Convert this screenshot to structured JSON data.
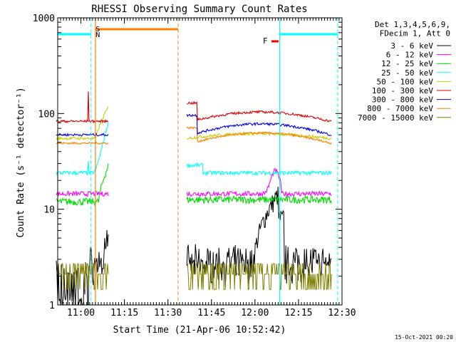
{
  "chart_data": {
    "type": "line",
    "title": "RHESSI Observing Summary Count Rates",
    "xlabel": "Start Time (21-Apr-06 10:52:42)",
    "ylabel": "Count Rate (s⁻¹ detector⁻¹)",
    "xlim_minutes_from_1052": [
      0,
      98
    ],
    "ylim": [
      1,
      1000
    ],
    "yscale": "log",
    "x_ticks": [
      {
        "label": "11:00",
        "minutes": 8
      },
      {
        "label": "11:15",
        "minutes": 23
      },
      {
        "label": "11:30",
        "minutes": 38
      },
      {
        "label": "11:45",
        "minutes": 53
      },
      {
        "label": "12:00",
        "minutes": 68
      },
      {
        "label": "12:15",
        "minutes": 83
      },
      {
        "label": "12:30",
        "minutes": 98
      }
    ],
    "y_ticks": [
      {
        "label": "1",
        "value": 1
      },
      {
        "label": "10",
        "value": 10
      },
      {
        "label": "100",
        "value": 100
      },
      {
        "label": "1000",
        "value": 1000
      }
    ],
    "legend_header": [
      "Det 1,3,4,5,6,9,",
      "FDecim 1, Att 0"
    ],
    "series": [
      {
        "name": "3 - 6 keV",
        "color": "#000000",
        "base": 2.4
      },
      {
        "name": "6 - 12 keV",
        "color": "#ff00ff",
        "base": 14.5
      },
      {
        "name": "12 - 25 keV",
        "color": "#00dd00",
        "base": 12
      },
      {
        "name": "25 - 50 keV",
        "color": "#00ffff",
        "base": 24
      },
      {
        "name": "50 - 100 keV",
        "color": "#cccc00",
        "base": 55
      },
      {
        "name": "100 - 300 keV",
        "color": "#dd0000",
        "base": 83
      },
      {
        "name": "300 - 800 keV",
        "color": "#0000ee",
        "base": 60
      },
      {
        "name": "800 - 7000 keV",
        "color": "#ff8000",
        "base": 49
      },
      {
        "name": "7000 - 15000 keV",
        "color": "#808000",
        "base": 2.1
      }
    ],
    "markers": [
      {
        "label": "S",
        "color": "#ff8000"
      },
      {
        "label": "N",
        "color": "#00ffff"
      },
      {
        "label": "F",
        "color": "#ff0000"
      }
    ],
    "timestamp": "15-Oct-2021 00:20"
  }
}
